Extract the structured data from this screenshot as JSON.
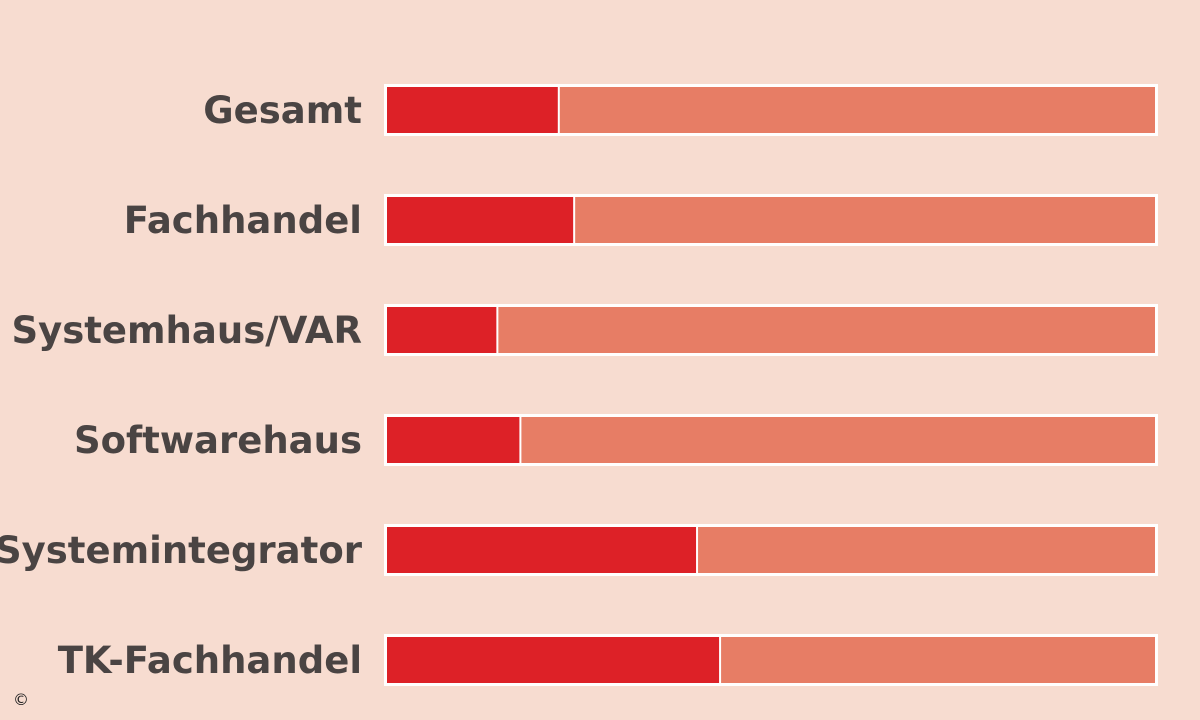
{
  "chart_data": {
    "type": "bar",
    "orientation": "horizontal",
    "stacked": true,
    "categories": [
      "Gesamt",
      "Fachhandel",
      "Systemhaus/VAR",
      "Softwarehaus",
      "Systemintegrator",
      "TK-Fachhandel"
    ],
    "series": [
      {
        "values": [
          22.5,
          24.5,
          14.5,
          17.5,
          40.5,
          43.5
        ],
        "color": "#dd2127"
      },
      {
        "values": [
          77.5,
          75.5,
          85.5,
          82.5,
          59.5,
          56.5
        ],
        "color": "#e77d65"
      }
    ],
    "xlim": [
      0,
      100
    ],
    "grid": false,
    "legend": "none"
  },
  "copyright_symbol": "©"
}
